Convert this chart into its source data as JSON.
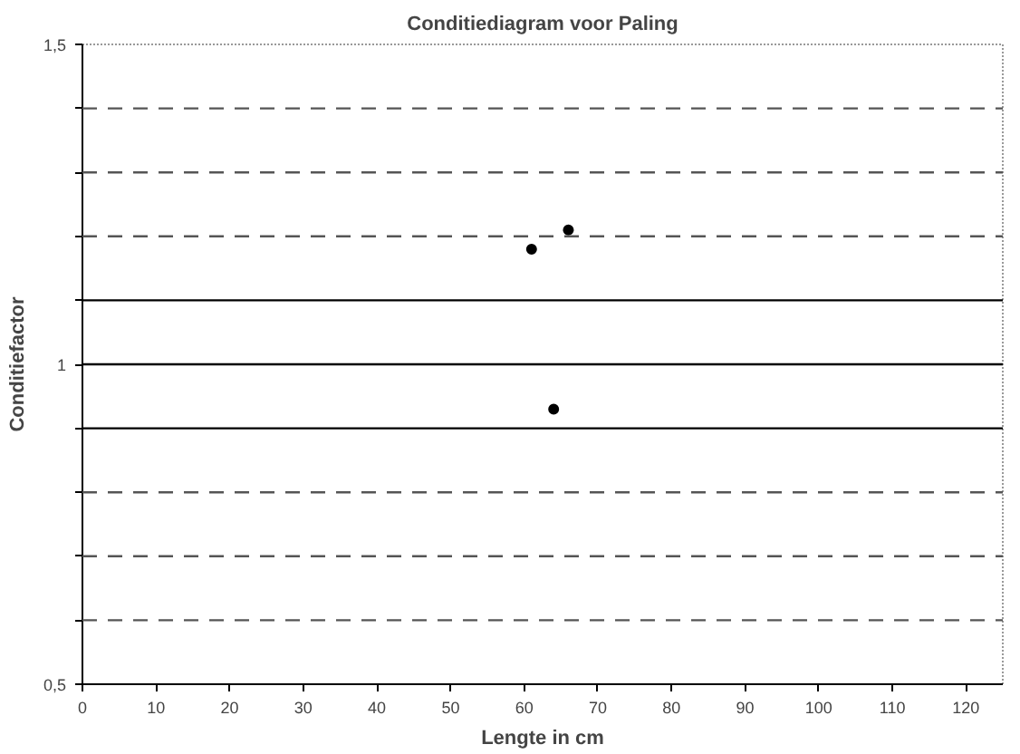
{
  "chart_data": {
    "type": "scatter",
    "title": "Conditiediagram voor Paling",
    "xlabel": "Lengte in cm",
    "ylabel": "Conditiefactor",
    "x": [
      61,
      64,
      66
    ],
    "series": [
      {
        "color": "#000000",
        "values": [
          1.18,
          0.93,
          1.21
        ]
      }
    ],
    "marker": "circle",
    "xlim": [
      0,
      125
    ],
    "xticks": [
      0,
      10,
      20,
      30,
      40,
      50,
      60,
      70,
      80,
      90,
      100,
      110,
      120
    ],
    "ylim": [
      0.5,
      1.5
    ],
    "yticks": [
      {
        "value": 0.5,
        "label": "0,5"
      },
      {
        "value": 0.6,
        "label": null
      },
      {
        "value": 0.7,
        "label": null
      },
      {
        "value": 0.8,
        "label": null
      },
      {
        "value": 0.9,
        "label": null
      },
      {
        "value": 1,
        "label": "1"
      },
      {
        "value": 1.1,
        "label": null
      },
      {
        "value": 1.2,
        "label": null
      },
      {
        "value": 1.3,
        "label": null
      },
      {
        "value": 1.4,
        "label": null
      },
      {
        "value": 1.5,
        "label": "1,5"
      }
    ],
    "ref_lines": [
      {
        "axis": "y",
        "value": 0.6,
        "color": "#555555",
        "line_style": "dashed"
      },
      {
        "axis": "y",
        "value": 0.7,
        "color": "#555555",
        "line_style": "dashed"
      },
      {
        "axis": "y",
        "value": 0.8,
        "color": "#555555",
        "line_style": "dashed"
      },
      {
        "axis": "y",
        "value": 0.9,
        "color": "#000000",
        "line_style": "solid"
      },
      {
        "axis": "y",
        "value": 1.0,
        "color": "#000000",
        "line_style": "solid"
      },
      {
        "axis": "y",
        "value": 1.1,
        "color": "#000000",
        "line_style": "solid"
      },
      {
        "axis": "y",
        "value": 1.2,
        "color": "#555555",
        "line_style": "dashed"
      },
      {
        "axis": "y",
        "value": 1.3,
        "color": "#555555",
        "line_style": "dashed"
      },
      {
        "axis": "y",
        "value": 1.4,
        "color": "#555555",
        "line_style": "dashed"
      }
    ]
  }
}
